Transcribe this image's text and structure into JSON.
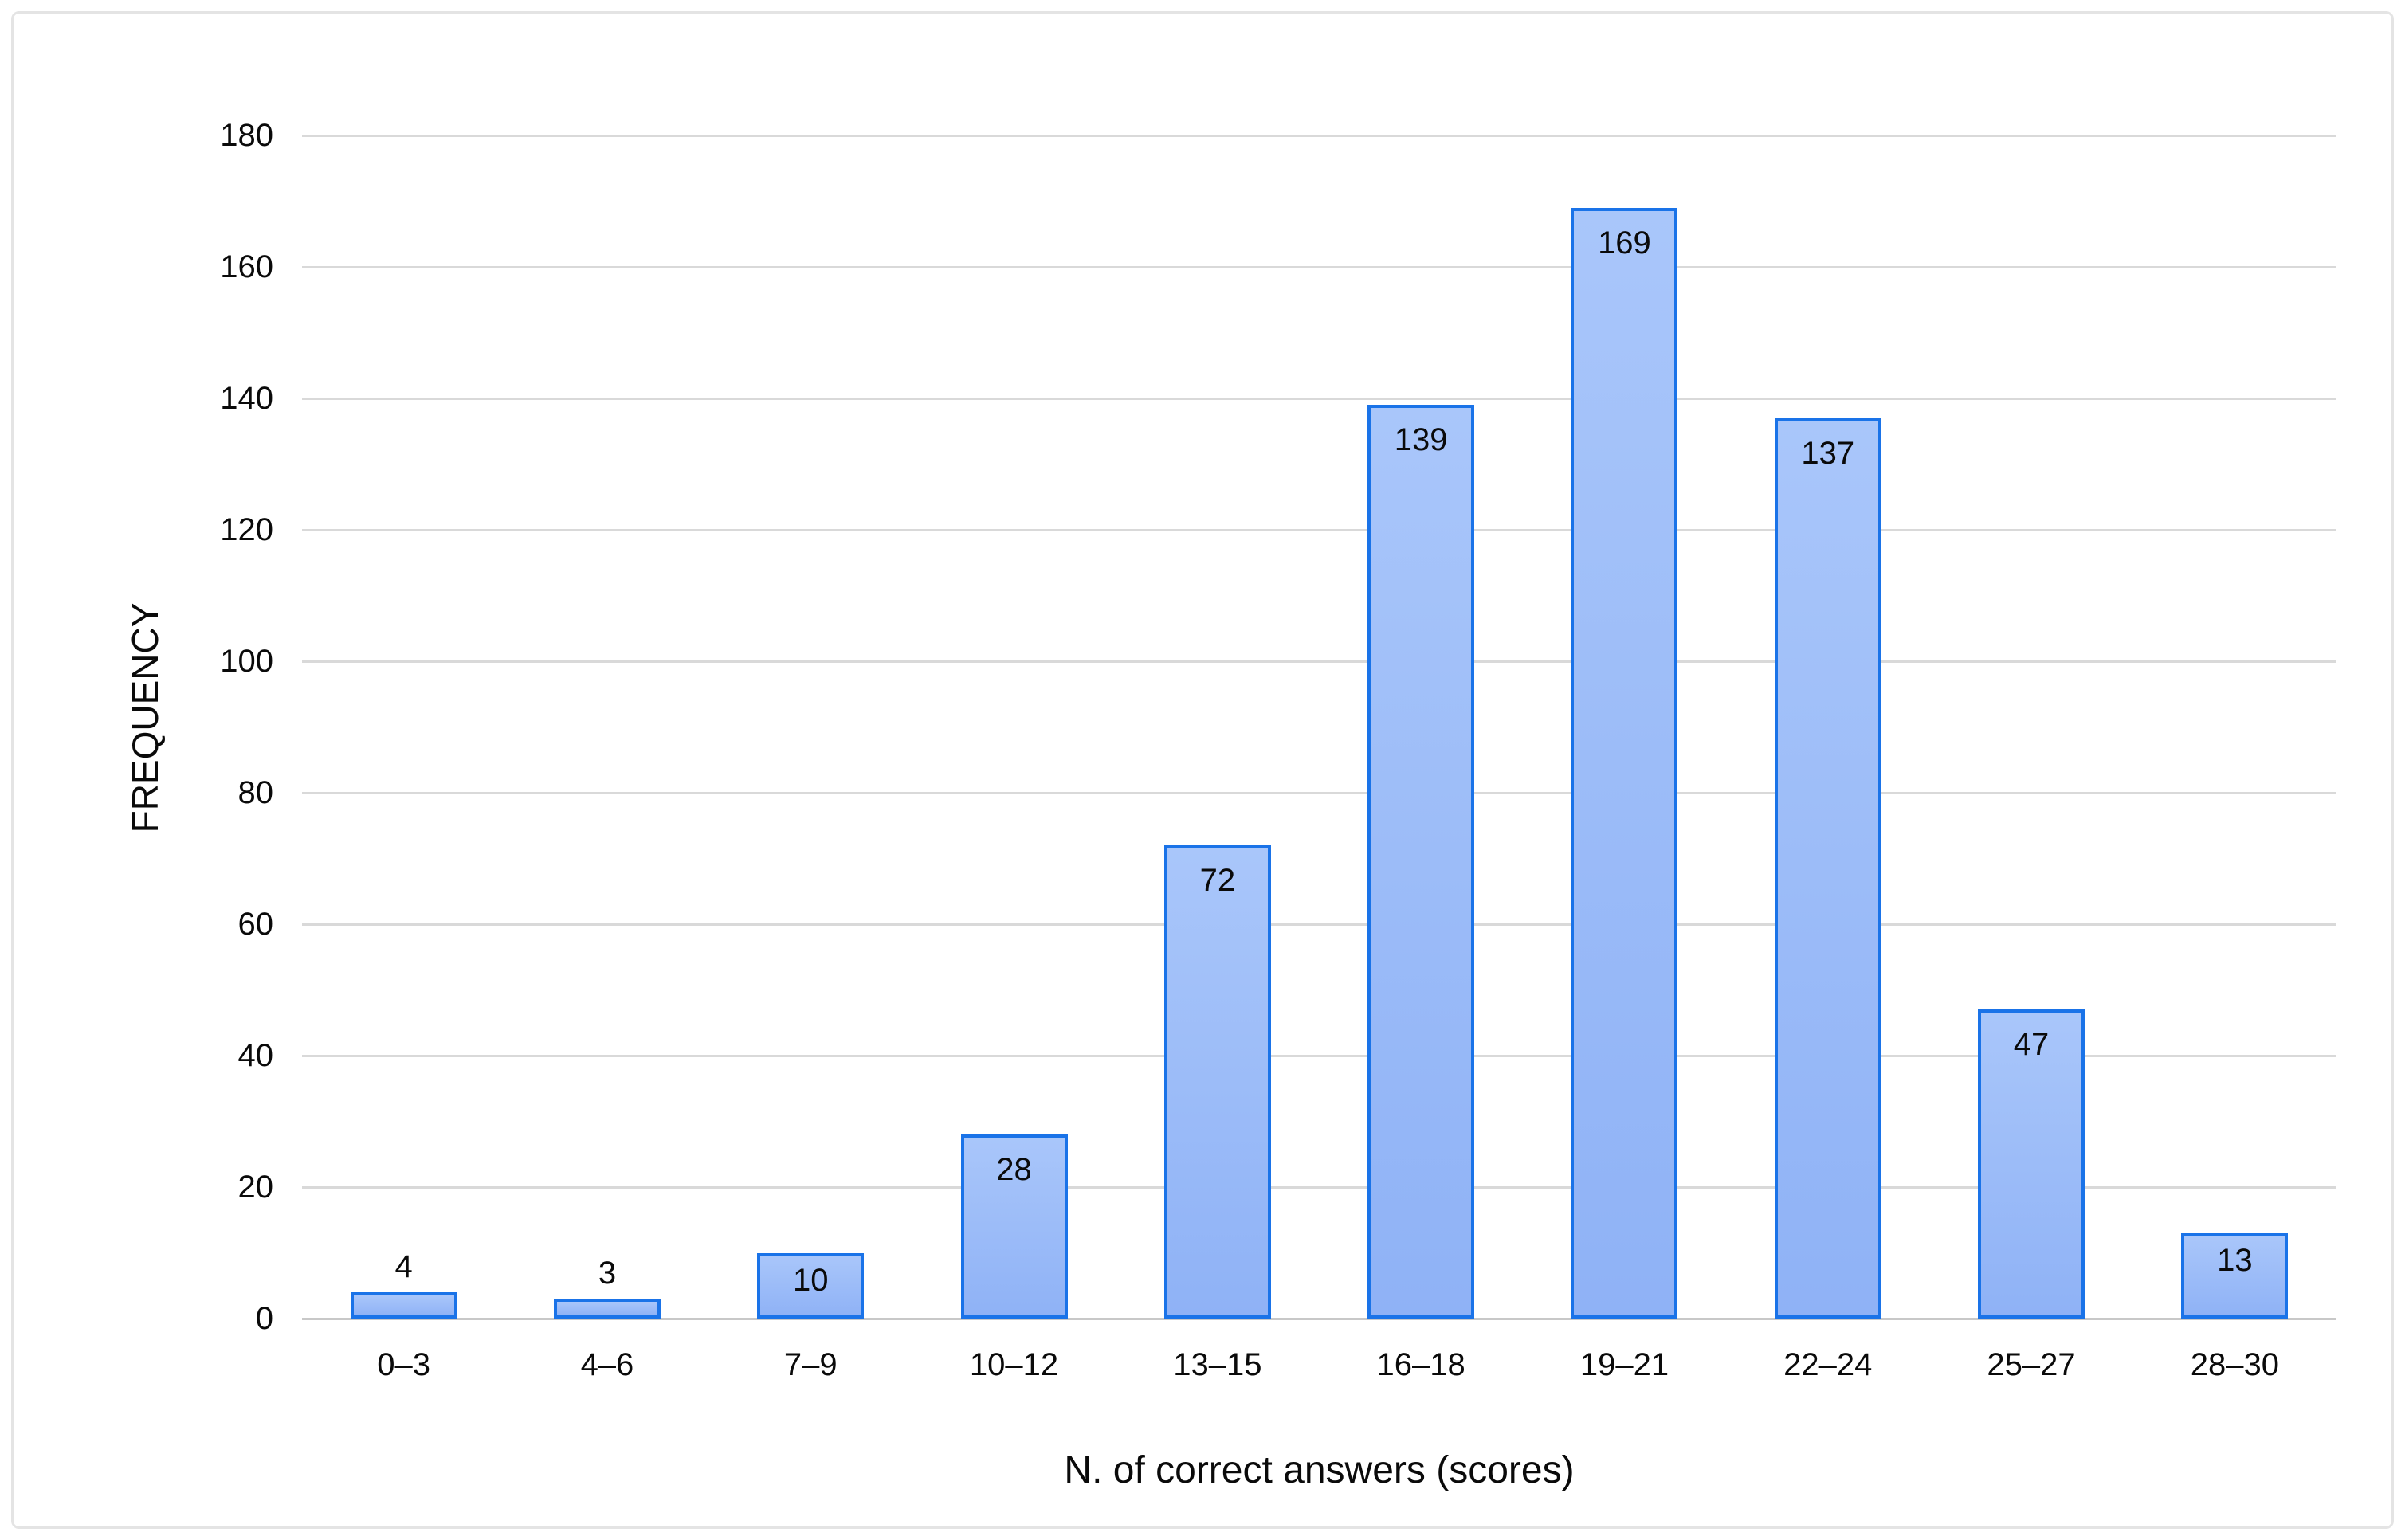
{
  "chart_data": {
    "type": "bar",
    "title": "",
    "xlabel": "N. of correct answers (scores)",
    "ylabel": "FREQUENCY",
    "categories": [
      "0–3",
      "4–6",
      "7–9",
      "10–12",
      "13–15",
      "16–18",
      "19–21",
      "22–24",
      "25–27",
      "28–30"
    ],
    "values": [
      4,
      3,
      10,
      28,
      72,
      139,
      169,
      137,
      47,
      13
    ],
    "data_labels_shown": true,
    "ylim": [
      0,
      180
    ],
    "ytick_step": 20,
    "ytick_labels": [
      "0",
      "20",
      "40",
      "60",
      "80",
      "100",
      "120",
      "140",
      "160",
      "180"
    ],
    "grid": true,
    "legend_position": "none",
    "colors": {
      "bar_fill_top": "#a9c6fa",
      "bar_fill_bottom": "#8fb2f6",
      "bar_border": "#1a73e8",
      "gridline": "#d9d9d9",
      "axis_baseline": "#c8c8c8",
      "text": "#0a0a0a",
      "frame_border": "#e4e4e4",
      "background": "#ffffff"
    }
  }
}
